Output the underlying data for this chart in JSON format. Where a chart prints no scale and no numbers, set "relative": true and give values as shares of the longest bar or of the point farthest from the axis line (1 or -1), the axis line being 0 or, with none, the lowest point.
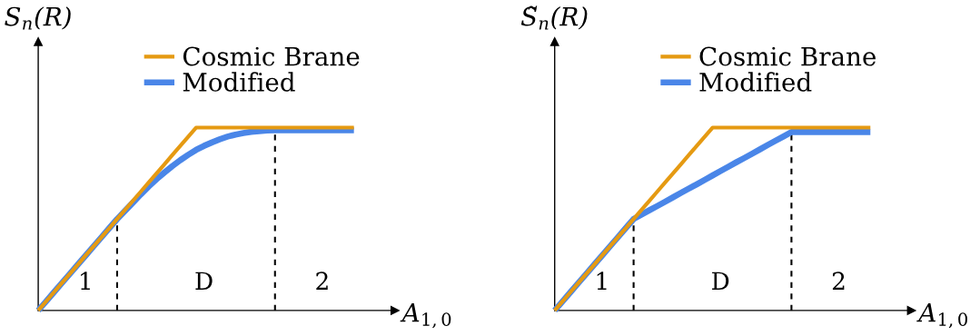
{
  "chart_data": [
    {
      "type": "line",
      "relative": true,
      "ylabel": "S$_{n}$(R)",
      "xlabel": "A$_{1,0}$",
      "legend": "top",
      "categories": [
        null,
        null,
        null,
        null,
        null,
        null,
        null,
        null,
        null,
        null,
        null,
        null,
        null,
        null,
        null,
        null,
        null,
        null,
        null,
        null,
        null,
        null,
        null,
        null,
        null,
        null,
        null,
        null,
        null,
        null,
        null,
        null,
        null,
        null,
        null,
        null,
        null,
        null,
        null,
        null,
        null
      ],
      "series": [
        {
          "name": "Cosmic Brane",
          "color": "#e59a12",
          "values": [
            0,
            0.05,
            0.1,
            0.15,
            0.2,
            0.25,
            0.3,
            0.35,
            0.4,
            0.45,
            0.5,
            0.55,
            0.6,
            0.65,
            0.7,
            0.75,
            0.8,
            0.85,
            0.9,
            0.95,
            1,
            1,
            1,
            1,
            1,
            1,
            1,
            1,
            1,
            1,
            1,
            1,
            1,
            1,
            1,
            1,
            1,
            1,
            1,
            1,
            1
          ]
        },
        {
          "name": "Modified",
          "color": "#4a86e8",
          "values": [
            0,
            0.05,
            0.1,
            0.15,
            0.2,
            0.25,
            0.3,
            0.35,
            0.4,
            0.45,
            0.5,
            0.545,
            0.59,
            0.635,
            0.678,
            0.718,
            0.755,
            0.79,
            0.822,
            0.851,
            0.878,
            0.9,
            0.919,
            0.936,
            0.951,
            0.962,
            0.97,
            0.977,
            0.981,
            0.984,
            0.985,
            0.985,
            0.985,
            0.985,
            0.985,
            0.985,
            0.985,
            0.985,
            0.985,
            0.985,
            0.985
          ]
        }
      ],
      "annotations": [
        "1",
        "D",
        "2"
      ]
    },
    {
      "type": "line",
      "relative": true,
      "ylabel": "S̃$_{n}$(R)",
      "xlabel": "A$_{1,0}$",
      "legend": "top",
      "categories": [
        null,
        null,
        null,
        null,
        null,
        null,
        null,
        null,
        null,
        null,
        null,
        null,
        null,
        null,
        null,
        null,
        null,
        null,
        null,
        null,
        null,
        null,
        null,
        null,
        null,
        null,
        null,
        null,
        null,
        null,
        null,
        null,
        null,
        null,
        null,
        null,
        null,
        null,
        null,
        null,
        null
      ],
      "series": [
        {
          "name": "Cosmic Brane",
          "color": "#e59a12",
          "values": [
            0,
            0.05,
            0.1,
            0.15,
            0.2,
            0.25,
            0.3,
            0.35,
            0.4,
            0.45,
            0.5,
            0.55,
            0.6,
            0.65,
            0.7,
            0.75,
            0.8,
            0.85,
            0.9,
            0.95,
            1,
            1,
            1,
            1,
            1,
            1,
            1,
            1,
            1,
            1,
            1,
            1,
            1,
            1,
            1,
            1,
            1,
            1,
            1,
            1,
            1
          ]
        },
        {
          "name": "Modified",
          "color": "#4a86e8",
          "values": [
            0,
            0.05,
            0.1,
            0.15,
            0.2,
            0.25,
            0.3,
            0.35,
            0.4,
            0.45,
            0.5,
            0.524,
            0.548,
            0.571,
            0.595,
            0.619,
            0.643,
            0.667,
            0.69,
            0.714,
            0.738,
            0.762,
            0.786,
            0.81,
            0.833,
            0.857,
            0.881,
            0.905,
            0.929,
            0.952,
            0.976,
            0.976,
            0.976,
            0.976,
            0.976,
            0.976,
            0.976,
            0.976,
            0.976,
            0.976,
            0.976
          ]
        }
      ],
      "annotations": [
        "1",
        "D",
        "2"
      ]
    }
  ]
}
